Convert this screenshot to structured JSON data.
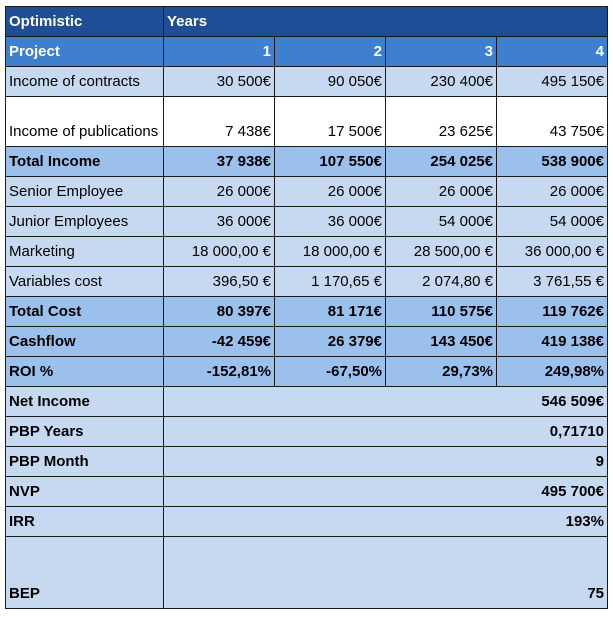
{
  "header": {
    "scenario": "Optimistic",
    "years_label": "Years"
  },
  "project_row": {
    "label": "Project",
    "years": [
      "1",
      "2",
      "3",
      "4"
    ]
  },
  "rows": [
    {
      "label": "Income of contracts",
      "values": [
        "30 500€",
        "90 050€",
        "230 400€",
        "495 150€"
      ],
      "style": "normal"
    },
    {
      "label": "Income of publications",
      "values": [
        "7 438€",
        "17 500€",
        "23 625€",
        "43 750€"
      ],
      "style": "two"
    },
    {
      "label": "Total Income",
      "values": [
        "37 938€",
        "107 550€",
        "254 025€",
        "538 900€"
      ],
      "style": "total"
    },
    {
      "label": "Senior Employee",
      "values": [
        "26 000€",
        "26 000€",
        "26 000€",
        "26 000€"
      ],
      "style": "normal"
    },
    {
      "label": "Junior Employees",
      "values": [
        "36 000€",
        "36 000€",
        "54 000€",
        "54 000€"
      ],
      "style": "normal"
    },
    {
      "label": "Marketing",
      "values": [
        "18 000,00 €",
        "18 000,00 €",
        "28 500,00 €",
        "36 000,00 €"
      ],
      "style": "normal"
    },
    {
      "label": "Variables cost",
      "values": [
        "396,50 €",
        "1 170,65 €",
        "2 074,80 €",
        "3 761,55 €"
      ],
      "style": "normal"
    },
    {
      "label": "Total Cost",
      "values": [
        "80 397€",
        "81 171€",
        "110 575€",
        "119 762€"
      ],
      "style": "total"
    },
    {
      "label": "Cashflow",
      "values": [
        "-42 459€",
        "26 379€",
        "143 450€",
        "419 138€"
      ],
      "style": "total"
    },
    {
      "label": "ROI %",
      "values": [
        "-152,81%",
        "-67,50%",
        "29,73%",
        "249,98%"
      ],
      "style": "total"
    }
  ],
  "summary": [
    {
      "label": "Net Income",
      "value": "546 509€"
    },
    {
      "label": "PBP Years",
      "value": "0,71710"
    },
    {
      "label": "PBP Month",
      "value": "9"
    },
    {
      "label": "NVP",
      "value": "495 700€"
    },
    {
      "label": "IRR",
      "value": "193%"
    },
    {
      "label": "BEP",
      "value": "75",
      "tall": true
    }
  ],
  "colors": {
    "header": "#1f4e96",
    "subheader": "#3f7fcf",
    "row": "#c6d9f1",
    "total": "#9cc0ec"
  }
}
